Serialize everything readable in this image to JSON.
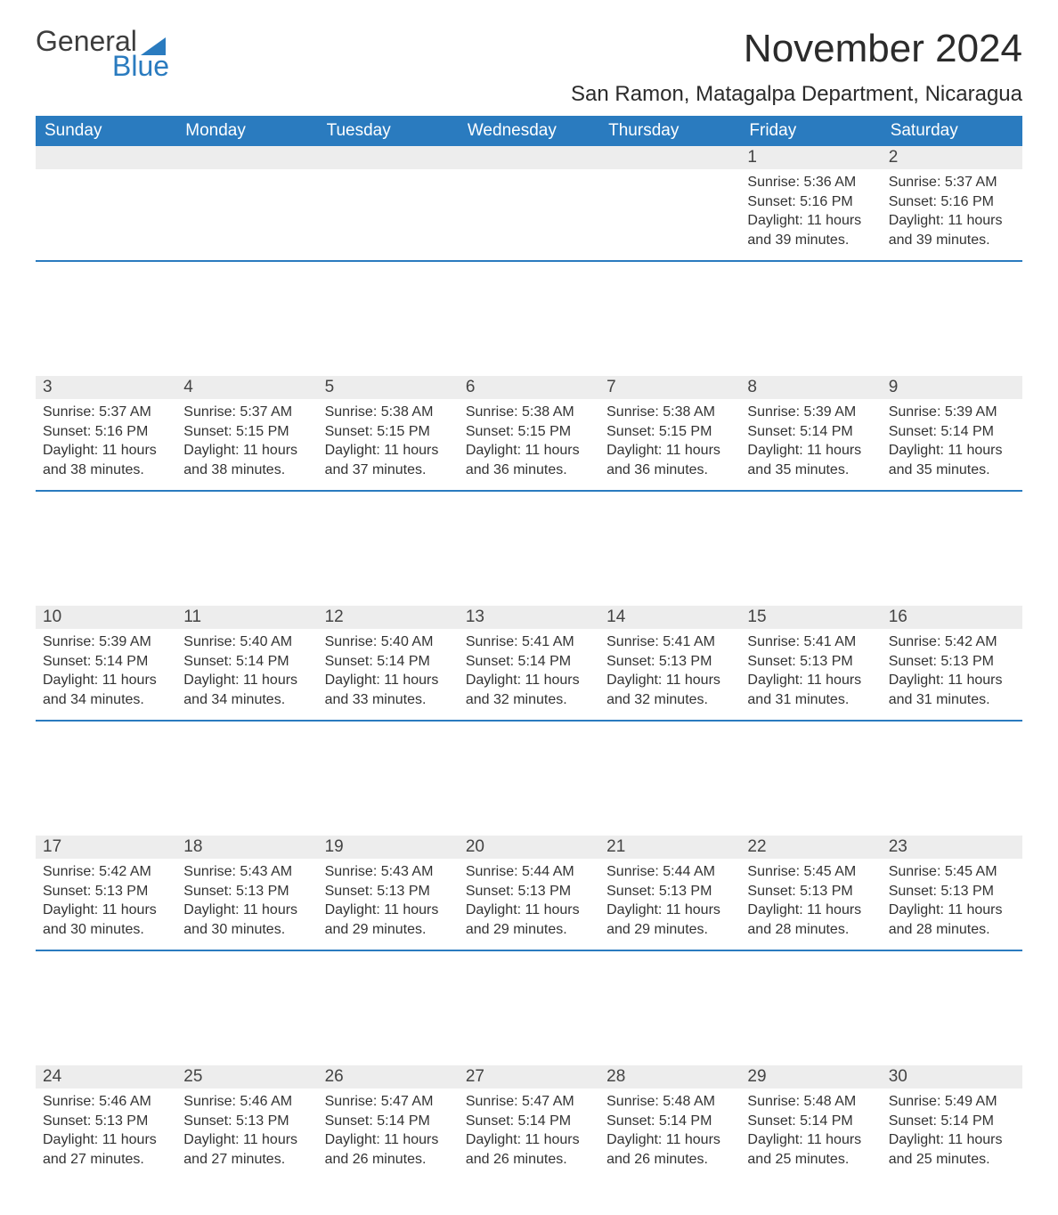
{
  "brand": {
    "word1": "General",
    "word2": "Blue",
    "tri_color": "#2a7bbf",
    "text_color_dark": "#3d3d3d"
  },
  "header": {
    "month_title": "November 2024",
    "location": "San Ramon, Matagalpa Department, Nicaragua"
  },
  "colors": {
    "header_bg": "#2a7bbf",
    "header_text": "#ffffff",
    "daynum_bg": "#ededed",
    "body_text": "#333333",
    "rule": "#2a7bbf"
  },
  "weekdays": [
    "Sunday",
    "Monday",
    "Tuesday",
    "Wednesday",
    "Thursday",
    "Friday",
    "Saturday"
  ],
  "weeks": [
    [
      null,
      null,
      null,
      null,
      null,
      {
        "n": "1",
        "sunrise": "Sunrise: 5:36 AM",
        "sunset": "Sunset: 5:16 PM",
        "day1": "Daylight: 11 hours",
        "day2": "and 39 minutes."
      },
      {
        "n": "2",
        "sunrise": "Sunrise: 5:37 AM",
        "sunset": "Sunset: 5:16 PM",
        "day1": "Daylight: 11 hours",
        "day2": "and 39 minutes."
      }
    ],
    [
      {
        "n": "3",
        "sunrise": "Sunrise: 5:37 AM",
        "sunset": "Sunset: 5:16 PM",
        "day1": "Daylight: 11 hours",
        "day2": "and 38 minutes."
      },
      {
        "n": "4",
        "sunrise": "Sunrise: 5:37 AM",
        "sunset": "Sunset: 5:15 PM",
        "day1": "Daylight: 11 hours",
        "day2": "and 38 minutes."
      },
      {
        "n": "5",
        "sunrise": "Sunrise: 5:38 AM",
        "sunset": "Sunset: 5:15 PM",
        "day1": "Daylight: 11 hours",
        "day2": "and 37 minutes."
      },
      {
        "n": "6",
        "sunrise": "Sunrise: 5:38 AM",
        "sunset": "Sunset: 5:15 PM",
        "day1": "Daylight: 11 hours",
        "day2": "and 36 minutes."
      },
      {
        "n": "7",
        "sunrise": "Sunrise: 5:38 AM",
        "sunset": "Sunset: 5:15 PM",
        "day1": "Daylight: 11 hours",
        "day2": "and 36 minutes."
      },
      {
        "n": "8",
        "sunrise": "Sunrise: 5:39 AM",
        "sunset": "Sunset: 5:14 PM",
        "day1": "Daylight: 11 hours",
        "day2": "and 35 minutes."
      },
      {
        "n": "9",
        "sunrise": "Sunrise: 5:39 AM",
        "sunset": "Sunset: 5:14 PM",
        "day1": "Daylight: 11 hours",
        "day2": "and 35 minutes."
      }
    ],
    [
      {
        "n": "10",
        "sunrise": "Sunrise: 5:39 AM",
        "sunset": "Sunset: 5:14 PM",
        "day1": "Daylight: 11 hours",
        "day2": "and 34 minutes."
      },
      {
        "n": "11",
        "sunrise": "Sunrise: 5:40 AM",
        "sunset": "Sunset: 5:14 PM",
        "day1": "Daylight: 11 hours",
        "day2": "and 34 minutes."
      },
      {
        "n": "12",
        "sunrise": "Sunrise: 5:40 AM",
        "sunset": "Sunset: 5:14 PM",
        "day1": "Daylight: 11 hours",
        "day2": "and 33 minutes."
      },
      {
        "n": "13",
        "sunrise": "Sunrise: 5:41 AM",
        "sunset": "Sunset: 5:14 PM",
        "day1": "Daylight: 11 hours",
        "day2": "and 32 minutes."
      },
      {
        "n": "14",
        "sunrise": "Sunrise: 5:41 AM",
        "sunset": "Sunset: 5:13 PM",
        "day1": "Daylight: 11 hours",
        "day2": "and 32 minutes."
      },
      {
        "n": "15",
        "sunrise": "Sunrise: 5:41 AM",
        "sunset": "Sunset: 5:13 PM",
        "day1": "Daylight: 11 hours",
        "day2": "and 31 minutes."
      },
      {
        "n": "16",
        "sunrise": "Sunrise: 5:42 AM",
        "sunset": "Sunset: 5:13 PM",
        "day1": "Daylight: 11 hours",
        "day2": "and 31 minutes."
      }
    ],
    [
      {
        "n": "17",
        "sunrise": "Sunrise: 5:42 AM",
        "sunset": "Sunset: 5:13 PM",
        "day1": "Daylight: 11 hours",
        "day2": "and 30 minutes."
      },
      {
        "n": "18",
        "sunrise": "Sunrise: 5:43 AM",
        "sunset": "Sunset: 5:13 PM",
        "day1": "Daylight: 11 hours",
        "day2": "and 30 minutes."
      },
      {
        "n": "19",
        "sunrise": "Sunrise: 5:43 AM",
        "sunset": "Sunset: 5:13 PM",
        "day1": "Daylight: 11 hours",
        "day2": "and 29 minutes."
      },
      {
        "n": "20",
        "sunrise": "Sunrise: 5:44 AM",
        "sunset": "Sunset: 5:13 PM",
        "day1": "Daylight: 11 hours",
        "day2": "and 29 minutes."
      },
      {
        "n": "21",
        "sunrise": "Sunrise: 5:44 AM",
        "sunset": "Sunset: 5:13 PM",
        "day1": "Daylight: 11 hours",
        "day2": "and 29 minutes."
      },
      {
        "n": "22",
        "sunrise": "Sunrise: 5:45 AM",
        "sunset": "Sunset: 5:13 PM",
        "day1": "Daylight: 11 hours",
        "day2": "and 28 minutes."
      },
      {
        "n": "23",
        "sunrise": "Sunrise: 5:45 AM",
        "sunset": "Sunset: 5:13 PM",
        "day1": "Daylight: 11 hours",
        "day2": "and 28 minutes."
      }
    ],
    [
      {
        "n": "24",
        "sunrise": "Sunrise: 5:46 AM",
        "sunset": "Sunset: 5:13 PM",
        "day1": "Daylight: 11 hours",
        "day2": "and 27 minutes."
      },
      {
        "n": "25",
        "sunrise": "Sunrise: 5:46 AM",
        "sunset": "Sunset: 5:13 PM",
        "day1": "Daylight: 11 hours",
        "day2": "and 27 minutes."
      },
      {
        "n": "26",
        "sunrise": "Sunrise: 5:47 AM",
        "sunset": "Sunset: 5:14 PM",
        "day1": "Daylight: 11 hours",
        "day2": "and 26 minutes."
      },
      {
        "n": "27",
        "sunrise": "Sunrise: 5:47 AM",
        "sunset": "Sunset: 5:14 PM",
        "day1": "Daylight: 11 hours",
        "day2": "and 26 minutes."
      },
      {
        "n": "28",
        "sunrise": "Sunrise: 5:48 AM",
        "sunset": "Sunset: 5:14 PM",
        "day1": "Daylight: 11 hours",
        "day2": "and 26 minutes."
      },
      {
        "n": "29",
        "sunrise": "Sunrise: 5:48 AM",
        "sunset": "Sunset: 5:14 PM",
        "day1": "Daylight: 11 hours",
        "day2": "and 25 minutes."
      },
      {
        "n": "30",
        "sunrise": "Sunrise: 5:49 AM",
        "sunset": "Sunset: 5:14 PM",
        "day1": "Daylight: 11 hours",
        "day2": "and 25 minutes."
      }
    ]
  ]
}
